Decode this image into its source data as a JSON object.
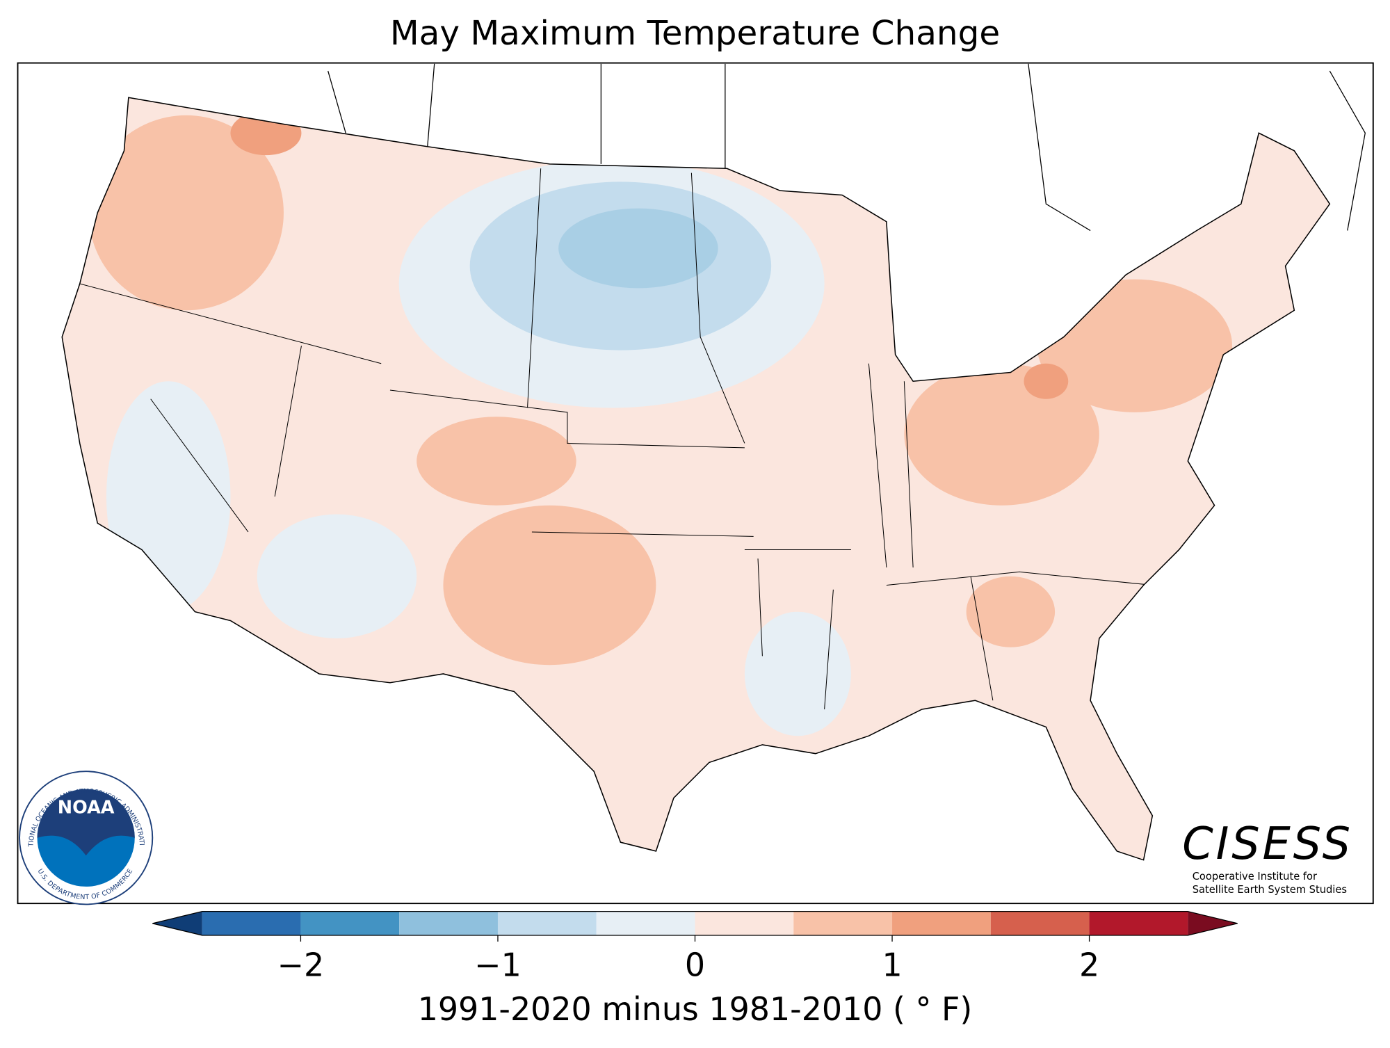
{
  "title": "May Maximum Temperature Change",
  "colorbar": {
    "label": "1991-2020 minus 1981-2010 ( ° F)",
    "lim": [
      -2.5,
      2.5
    ],
    "bounds": [
      -2.5,
      -2,
      -1.5,
      -1,
      -0.5,
      0,
      0.5,
      1,
      1.5,
      2,
      2.5
    ],
    "colors": [
      "#2a6db0",
      "#4393c3",
      "#8fc0dd",
      "#c3dced",
      "#e7eff5",
      "#fbe6de",
      "#f8c2a8",
      "#f0a07e",
      "#d6604d",
      "#b2182b"
    ],
    "under_color": "#0f3d76",
    "over_color": "#7a0c20",
    "ticks": [
      {
        "value": -2,
        "label": "−2"
      },
      {
        "value": -1,
        "label": "−1"
      },
      0,
      1,
      2
    ]
  },
  "logos": {
    "noaa": "NOAA",
    "noaa_ring_top": "NATIONAL OCEANIC AND ATMOSPHERIC ADMINISTRATION",
    "noaa_ring_bottom": "U.S. DEPARTMENT OF COMMERCE",
    "cisess": "CISESS",
    "cisess_line1": "Cooperative Institute for",
    "cisess_line2": "Satellite Earth System Studies"
  }
}
